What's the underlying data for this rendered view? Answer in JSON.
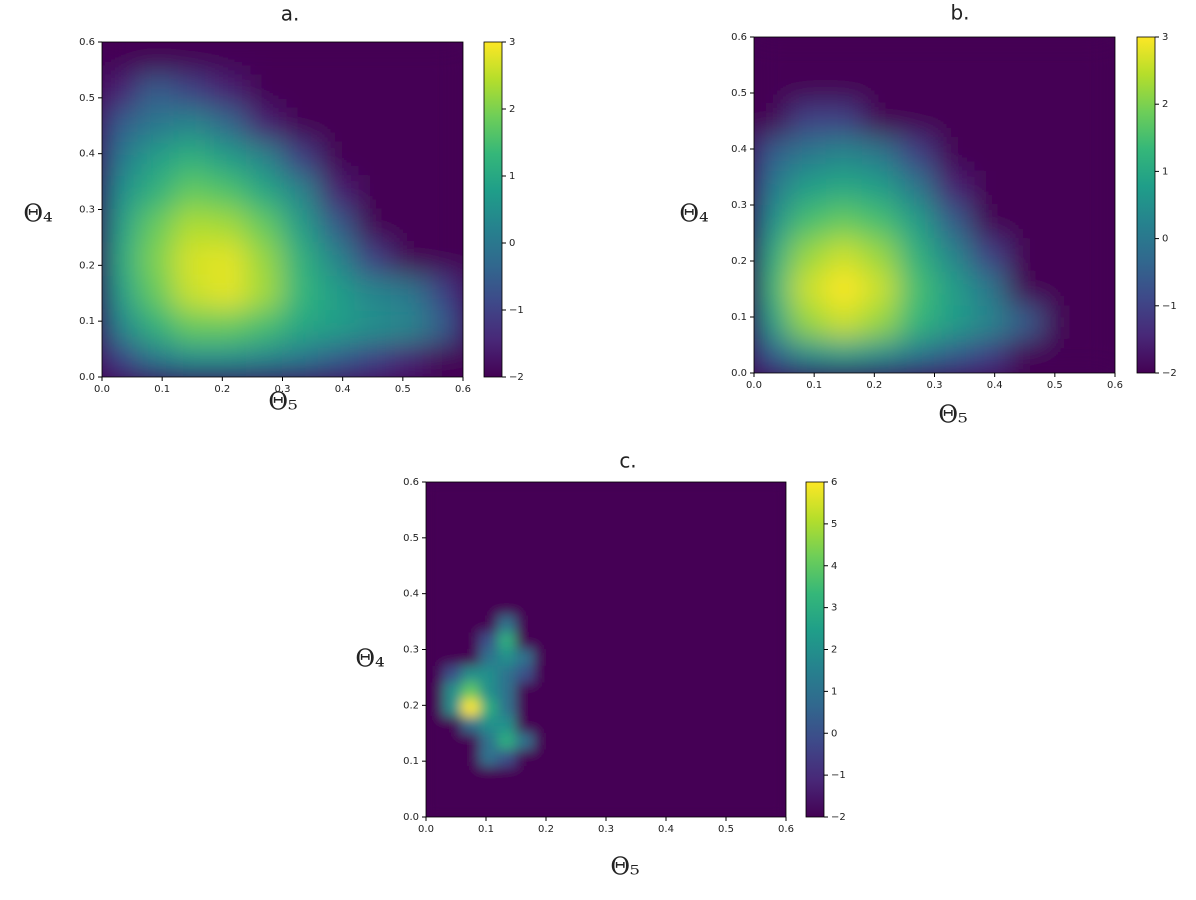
{
  "chart_data": [
    {
      "type": "heatmap",
      "title": "a.",
      "xlabel": "Θ₅",
      "ylabel": "Θ₄",
      "xlim": [
        0,
        0.6
      ],
      "ylim": [
        0,
        0.6
      ],
      "xticks": [
        {
          "value": 0,
          "label": "0.0"
        },
        0.1,
        0.2,
        0.3,
        0.4,
        0.5,
        0.6
      ],
      "yticks": [
        {
          "value": 0,
          "label": "0.0"
        },
        0.1,
        0.2,
        0.3,
        0.4,
        0.5,
        0.6
      ],
      "colormap": "viridis",
      "vlim": [
        -2,
        3
      ],
      "cticks": [
        {
          "value": -2,
          "label": "−2"
        },
        {
          "value": -1,
          "label": "−1"
        },
        0,
        1,
        2,
        3
      ],
      "z": [
        [
          -2,
          -2,
          -2,
          -2,
          -2,
          -2,
          -2,
          -2,
          -2,
          -2
        ],
        [
          -1.5,
          -0.5,
          -1,
          -1.5,
          -2,
          -2,
          -2,
          -2,
          -2,
          -2
        ],
        [
          -0.5,
          0,
          0.3,
          -0.3,
          -1.5,
          -2,
          -2,
          -2,
          -2,
          -2
        ],
        [
          0,
          0.8,
          1.2,
          0.8,
          0.3,
          -1,
          -2,
          -2,
          -2,
          -2
        ],
        [
          0.5,
          1.2,
          1.8,
          1.6,
          1,
          0.3,
          -1.5,
          -2,
          -2,
          -2
        ],
        [
          0.8,
          1.8,
          2.4,
          2.3,
          1.8,
          0.8,
          -0.5,
          -2,
          -2,
          -2
        ],
        [
          1,
          2,
          2.7,
          2.8,
          2.2,
          1.2,
          0.3,
          -1,
          -2,
          -2
        ],
        [
          0.8,
          1.8,
          2.6,
          2.8,
          2.3,
          1.3,
          0.8,
          0.3,
          0,
          -1
        ],
        [
          0.3,
          1.2,
          1.8,
          1.8,
          1.5,
          1,
          0.8,
          0.5,
          0.3,
          -0.5
        ],
        [
          -1,
          0,
          0.5,
          0.5,
          0.3,
          0,
          -0.5,
          -1,
          -1.5,
          -2
        ]
      ]
    },
    {
      "type": "heatmap",
      "title": "b.",
      "xlabel": "Θ₅",
      "ylabel": "Θ₄",
      "xlim": [
        0,
        0.6
      ],
      "ylim": [
        0,
        0.6
      ],
      "xticks": [
        {
          "value": 0,
          "label": "0.0"
        },
        0.1,
        0.2,
        0.3,
        0.4,
        0.5,
        0.6
      ],
      "yticks": [
        {
          "value": 0,
          "label": "0.0"
        },
        0.1,
        0.2,
        0.3,
        0.4,
        0.5,
        0.6
      ],
      "colormap": "viridis",
      "vlim": [
        -2,
        3
      ],
      "cticks": [
        {
          "value": -2,
          "label": "−2"
        },
        {
          "value": -1,
          "label": "−1"
        },
        0,
        1,
        2,
        3
      ],
      "z": [
        [
          -2,
          -2,
          -2,
          -2,
          -2,
          -2,
          -2,
          -2,
          -2,
          -2
        ],
        [
          -2,
          -2,
          -2,
          -2,
          -2,
          -2,
          -2,
          -2,
          -2,
          -2
        ],
        [
          -2,
          -1,
          -1,
          -2,
          -2,
          -2,
          -2,
          -2,
          -2,
          -2
        ],
        [
          -0.5,
          0,
          0.3,
          0,
          -1,
          -2,
          -2,
          -2,
          -2,
          -2
        ],
        [
          0,
          0.8,
          1,
          0.8,
          0,
          -1.5,
          -2,
          -2,
          -2,
          -2
        ],
        [
          0.5,
          1.5,
          1.8,
          1.5,
          0.8,
          -0.5,
          -2,
          -2,
          -2,
          -2
        ],
        [
          1,
          2.2,
          2.6,
          2.2,
          1.2,
          0.3,
          -1,
          -2,
          -2,
          -2
        ],
        [
          1.2,
          2.6,
          3,
          2.6,
          1.5,
          0.8,
          0,
          -2,
          -2,
          -2
        ],
        [
          0.8,
          2.2,
          2.6,
          2.2,
          1.3,
          0.8,
          0.3,
          -0.5,
          -2,
          -2
        ],
        [
          -0.5,
          0.5,
          0.8,
          0.5,
          0,
          -0.5,
          -1,
          -2,
          -2,
          -2
        ]
      ]
    },
    {
      "type": "heatmap",
      "title": "c.",
      "xlabel": "Θ₅",
      "ylabel": "Θ₄",
      "xlim": [
        0,
        0.6
      ],
      "ylim": [
        0,
        0.6
      ],
      "xticks": [
        {
          "value": 0,
          "label": "0.0"
        },
        0.1,
        0.2,
        0.3,
        0.4,
        0.5,
        0.6
      ],
      "yticks": [
        {
          "value": 0,
          "label": "0.0"
        },
        0.1,
        0.2,
        0.3,
        0.4,
        0.5,
        0.6
      ],
      "colormap": "viridis",
      "vlim": [
        -2,
        6
      ],
      "cticks": [
        {
          "value": -2,
          "label": "−2"
        },
        {
          "value": -1,
          "label": "−1"
        },
        0,
        1,
        2,
        3,
        4,
        5,
        6
      ],
      "z": [
        [
          -2,
          -2,
          -2,
          -2,
          -2,
          -2,
          -2,
          -2,
          -2,
          -2,
          -2,
          -2,
          -2,
          -2,
          -2,
          -2,
          -2,
          -2,
          -2,
          -2
        ],
        [
          -2,
          -2,
          -2,
          -2,
          -2,
          -2,
          -2,
          -2,
          -2,
          -2,
          -2,
          -2,
          -2,
          -2,
          -2,
          -2,
          -2,
          -2,
          -2,
          -2
        ],
        [
          -2,
          -2,
          -2,
          -2,
          -2,
          -2,
          -2,
          -2,
          -2,
          -2,
          -2,
          -2,
          -2,
          -2,
          -2,
          -2,
          -2,
          -2,
          -2,
          -2
        ],
        [
          -2,
          -2,
          -2,
          -2,
          -2,
          -2,
          -2,
          -2,
          -2,
          -2,
          -2,
          -2,
          -2,
          -2,
          -2,
          -2,
          -2,
          -2,
          -2,
          -2
        ],
        [
          -2,
          -2,
          -2,
          -2,
          -2,
          -2,
          -2,
          -2,
          -2,
          -2,
          -2,
          -2,
          -2,
          -2,
          -2,
          -2,
          -2,
          -2,
          -2,
          -2
        ],
        [
          -2,
          -2,
          -2,
          -2,
          -2,
          -2,
          -2,
          -2,
          -2,
          -2,
          -2,
          -2,
          -2,
          -2,
          -2,
          -2,
          -2,
          -2,
          -2,
          -2
        ],
        [
          -2,
          -2,
          -2,
          -2,
          -2,
          -2,
          -2,
          -2,
          -2,
          -2,
          -2,
          -2,
          -2,
          -2,
          -2,
          -2,
          -2,
          -2,
          -2,
          -2
        ],
        [
          -2,
          -2,
          -2,
          -2,
          -2,
          -2,
          -2,
          -2,
          -2,
          -2,
          -2,
          -2,
          -2,
          -2,
          -2,
          -2,
          -2,
          -2,
          -2,
          -2
        ],
        [
          -2,
          -2,
          -2,
          -2,
          1,
          -2,
          -2,
          -2,
          -2,
          -2,
          -2,
          -2,
          -2,
          -2,
          -2,
          -2,
          -2,
          -2,
          -2,
          -2
        ],
        [
          -2,
          -2,
          -2,
          0,
          3,
          -2,
          -2,
          -2,
          -2,
          -2,
          -2,
          -2,
          -2,
          -2,
          -2,
          -2,
          -2,
          -2,
          -2,
          -2
        ],
        [
          -2,
          -2,
          -2,
          1,
          2,
          1,
          -2,
          -2,
          -2,
          -2,
          -2,
          -2,
          -2,
          -2,
          -2,
          -2,
          -2,
          -2,
          -2,
          -2
        ],
        [
          -2,
          0,
          2,
          2,
          1,
          0,
          -2,
          -2,
          -2,
          -2,
          -2,
          -2,
          -2,
          -2,
          -2,
          -2,
          -2,
          -2,
          -2,
          -2
        ],
        [
          -2,
          2,
          4,
          2,
          1,
          -2,
          -2,
          -2,
          -2,
          -2,
          -2,
          -2,
          -2,
          -2,
          -2,
          -2,
          -2,
          -2,
          -2,
          -2
        ],
        [
          -2,
          2,
          6,
          3,
          1,
          -2,
          -2,
          -2,
          -2,
          -2,
          -2,
          -2,
          -2,
          -2,
          -2,
          -2,
          -2,
          -2,
          -2,
          -2
        ],
        [
          -2,
          -2,
          1,
          2,
          2,
          -2,
          -2,
          -2,
          -2,
          -2,
          -2,
          -2,
          -2,
          -2,
          -2,
          -2,
          -2,
          -2,
          -2,
          -2
        ],
        [
          -2,
          -2,
          -2,
          1,
          3,
          1,
          -2,
          -2,
          -2,
          -2,
          -2,
          -2,
          -2,
          -2,
          -2,
          -2,
          -2,
          -2,
          -2,
          -2
        ],
        [
          -2,
          -2,
          -2,
          1,
          0,
          -2,
          -2,
          -2,
          -2,
          -2,
          -2,
          -2,
          -2,
          -2,
          -2,
          -2,
          -2,
          -2,
          -2,
          -2
        ],
        [
          -2,
          -2,
          -2,
          -2,
          -2,
          -2,
          -2,
          -2,
          -2,
          -2,
          -2,
          -2,
          -2,
          -2,
          -2,
          -2,
          -2,
          -2,
          -2,
          -2
        ],
        [
          -2,
          -2,
          -2,
          -2,
          -2,
          -2,
          -2,
          -2,
          -2,
          -2,
          -2,
          -2,
          -2,
          -2,
          -2,
          -2,
          -2,
          -2,
          -2,
          -2
        ],
        [
          -2,
          -2,
          -2,
          -2,
          -2,
          -2,
          -2,
          -2,
          -2,
          -2,
          -2,
          -2,
          -2,
          -2,
          -2,
          -2,
          -2,
          -2,
          -2,
          -2
        ]
      ]
    }
  ]
}
